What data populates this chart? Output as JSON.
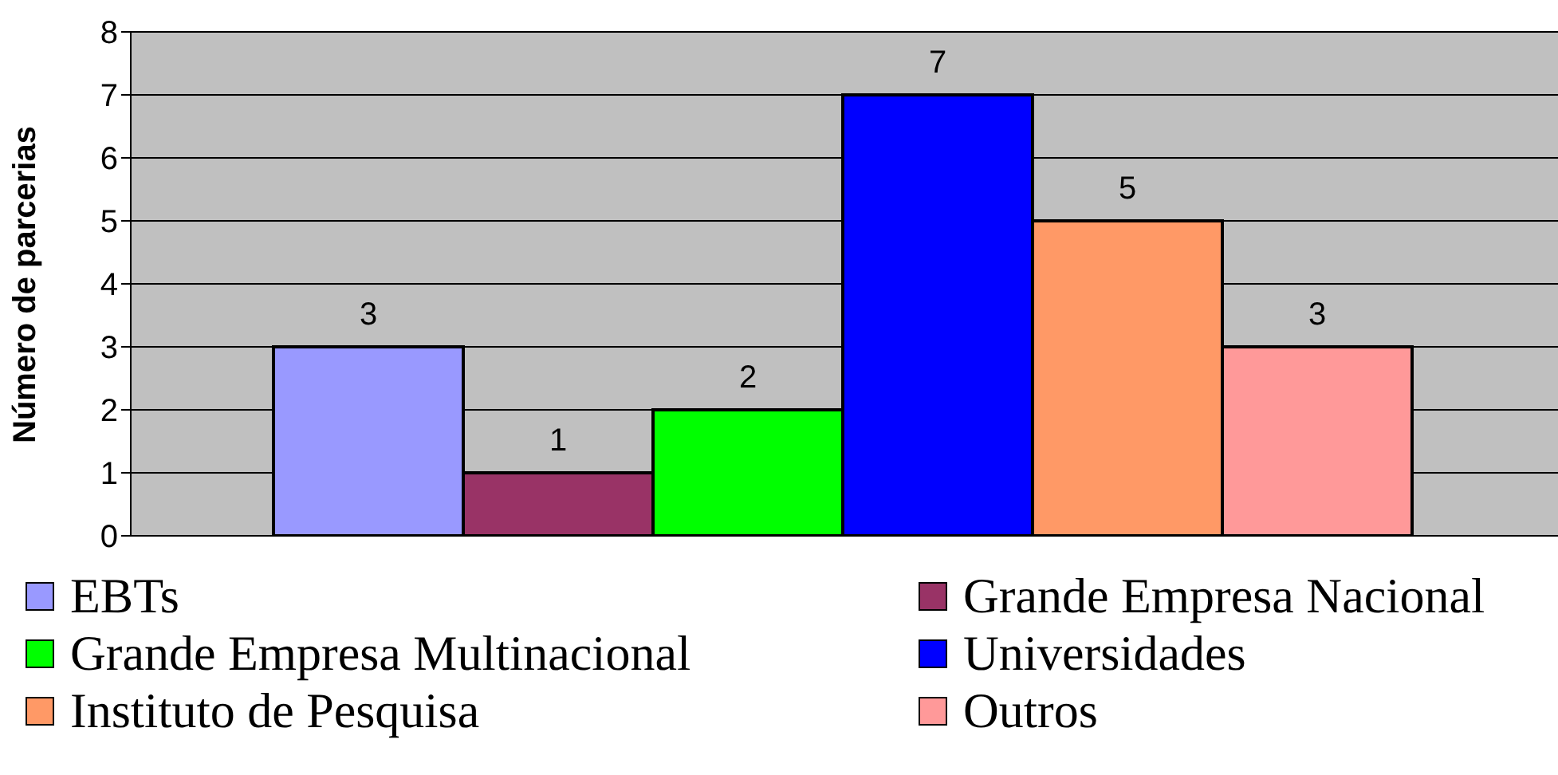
{
  "chart_data": {
    "type": "bar",
    "ylabel": "Número de parcerias",
    "categories": [
      null
    ],
    "series": [
      {
        "name": "EBTs",
        "color": "#9999ff",
        "values": [
          3
        ]
      },
      {
        "name": "Grande Empresa Nacional",
        "color": "#993366",
        "values": [
          1
        ]
      },
      {
        "name": "Grande Empresa Multinacional",
        "color": "#00ff00",
        "values": [
          2
        ]
      },
      {
        "name": "Universidades",
        "color": "#0000ff",
        "values": [
          7
        ]
      },
      {
        "name": "Instituto de Pesquisa",
        "color": "#ff9966",
        "values": [
          5
        ]
      },
      {
        "name": "Outros",
        "color": "#ff9999",
        "values": [
          3
        ]
      }
    ],
    "ylim": [
      0,
      8
    ],
    "yticks": [
      0,
      1,
      2,
      3,
      4,
      5,
      6,
      7,
      8
    ],
    "grid": "y",
    "legend": "bottom",
    "data_labels": true
  }
}
